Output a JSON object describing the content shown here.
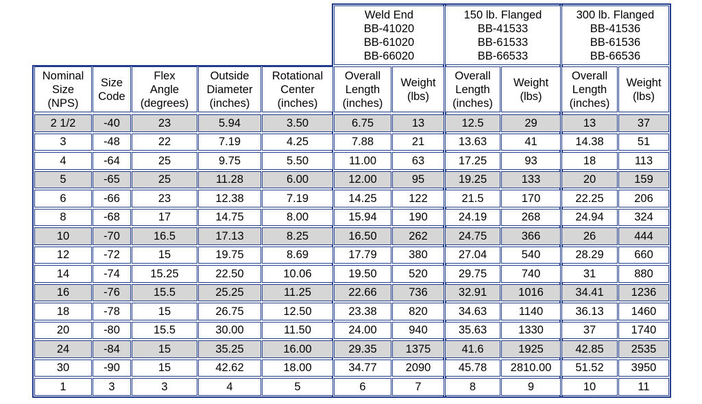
{
  "groups": [
    {
      "label": "Weld End\nBB-41020\nBB-61020\nBB-66020"
    },
    {
      "label": "150 lb. Flanged\nBB-41533\nBB-61533\nBB-66533"
    },
    {
      "label": "300 lb. Flanged\nBB-41536\nBB-61536\nBB-66536"
    }
  ],
  "columns": [
    "Nominal\nSize\n(NPS)",
    "Size\nCode",
    "Flex\nAngle\n(degrees)",
    "Outside\nDiameter\n(inches)",
    "Rotational\nCenter\n(inches)",
    "Overall\nLength\n(inches)",
    "Weight\n(lbs)",
    "Overall\nLength\n(inches)",
    "Weight\n(lbs)",
    "Overall\nLength\n(inches)",
    "Weight\n(lbs)"
  ],
  "rows": [
    {
      "shaded": true,
      "cells": [
        "2 1/2",
        "-40",
        "23",
        "5.94",
        "3.50",
        "6.75",
        "13",
        "12.5",
        "29",
        "13",
        "37"
      ]
    },
    {
      "shaded": false,
      "cells": [
        "3",
        "-48",
        "22",
        "7.19",
        "4.25",
        "7.88",
        "21",
        "13.63",
        "41",
        "14.38",
        "51"
      ]
    },
    {
      "shaded": false,
      "cells": [
        "4",
        "-64",
        "25",
        "9.75",
        "5.50",
        "11.00",
        "63",
        "17.25",
        "93",
        "18",
        "113"
      ]
    },
    {
      "shaded": true,
      "cells": [
        "5",
        "-65",
        "25",
        "11.28",
        "6.00",
        "12.00",
        "95",
        "19.25",
        "133",
        "20",
        "159"
      ]
    },
    {
      "shaded": false,
      "cells": [
        "6",
        "-66",
        "23",
        "12.38",
        "7.19",
        "14.25",
        "122",
        "21.5",
        "170",
        "22.25",
        "206"
      ]
    },
    {
      "shaded": false,
      "cells": [
        "8",
        "-68",
        "17",
        "14.75",
        "8.00",
        "15.94",
        "190",
        "24.19",
        "268",
        "24.94",
        "324"
      ]
    },
    {
      "shaded": true,
      "cells": [
        "10",
        "-70",
        "16.5",
        "17.13",
        "8.25",
        "16.50",
        "262",
        "24.75",
        "366",
        "26",
        "444"
      ]
    },
    {
      "shaded": false,
      "cells": [
        "12",
        "-72",
        "15",
        "19.75",
        "8.69",
        "17.79",
        "380",
        "27.04",
        "540",
        "28.29",
        "660"
      ]
    },
    {
      "shaded": false,
      "cells": [
        "14",
        "-74",
        "15.25",
        "22.50",
        "10.06",
        "19.50",
        "520",
        "29.75",
        "740",
        "31",
        "880"
      ]
    },
    {
      "shaded": true,
      "cells": [
        "16",
        "-76",
        "15.5",
        "25.25",
        "11.25",
        "22.66",
        "736",
        "32.91",
        "1016",
        "34.41",
        "1236"
      ]
    },
    {
      "shaded": false,
      "cells": [
        "18",
        "-78",
        "15",
        "26.75",
        "12.50",
        "23.38",
        "820",
        "34.63",
        "1140",
        "36.13",
        "1460"
      ]
    },
    {
      "shaded": false,
      "cells": [
        "20",
        "-80",
        "15.5",
        "30.00",
        "11.50",
        "24.00",
        "940",
        "35.63",
        "1330",
        "37",
        "1740"
      ]
    },
    {
      "shaded": true,
      "cells": [
        "24",
        "-84",
        "15",
        "35.25",
        "16.00",
        "29.35",
        "1375",
        "41.6",
        "1925",
        "42.85",
        "2535"
      ]
    },
    {
      "shaded": false,
      "cells": [
        "30",
        "-90",
        "15",
        "42.62",
        "18.00",
        "34.77",
        "2090",
        "45.78",
        "2810.00",
        "51.52",
        "3950"
      ]
    }
  ],
  "footer": [
    "1",
    "3",
    "3",
    "4",
    "5",
    "6",
    "7",
    "8",
    "9",
    "10",
    "11"
  ],
  "colors": {
    "border": "#1f3a8a",
    "shade": "#d6d6d6"
  }
}
